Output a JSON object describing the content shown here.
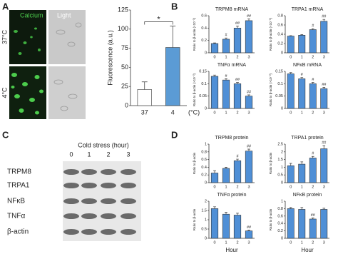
{
  "figure": {
    "panels": [
      "A",
      "B",
      "C",
      "D"
    ],
    "image_labels": {
      "calcium": "Calcium",
      "light": "Light",
      "row_37": "37°C",
      "row_4": "4°C"
    },
    "blot": {
      "title": "Cold stress (hour)",
      "lanes": [
        "0",
        "1",
        "2",
        "3"
      ],
      "rows": [
        "TRPM8",
        "TRPA1",
        "NFκB",
        "TNFα",
        "β-actin"
      ]
    }
  },
  "chart_data": [
    {
      "type": "bar",
      "ylabel": "Fluorescence (a.u.)",
      "xlabel": "(°C)",
      "categories": [
        "37",
        "4"
      ],
      "values": [
        21,
        76
      ],
      "errors": [
        10,
        28
      ],
      "colors": [
        "#ffffff",
        "#5b9bd5"
      ],
      "significance": "*",
      "ylim": [
        0,
        125
      ],
      "yticks": [
        0,
        25,
        50,
        75,
        100,
        125
      ]
    },
    {
      "type": "bar",
      "title": "TRPM8 mRNA",
      "ylabel": "Ratio to β-actin (×10⁻³)",
      "categories": [
        "0",
        "1",
        "2",
        "3"
      ],
      "values": [
        0.15,
        0.22,
        0.4,
        0.52
      ],
      "errors": [
        0.01,
        0.02,
        0.03,
        0.03
      ],
      "annotations": [
        null,
        "#",
        "##",
        "##"
      ],
      "color": "#4f8fd6",
      "ylim": [
        0,
        0.6
      ],
      "yticks": [
        0,
        0.2,
        0.4,
        0.6
      ]
    },
    {
      "type": "bar",
      "title": "TRPA1 mRNA",
      "ylabel": "Ratio to β-actin (×10⁻³)",
      "categories": [
        "0",
        "1",
        "2",
        "3"
      ],
      "values": [
        0.36,
        0.38,
        0.5,
        0.68
      ],
      "errors": [
        0.01,
        0.01,
        0.02,
        0.04
      ],
      "annotations": [
        null,
        null,
        "#",
        "##"
      ],
      "color": "#4f8fd6",
      "ylim": [
        0,
        0.8
      ],
      "yticks": [
        0,
        0.2,
        0.4,
        0.6,
        0.8
      ]
    },
    {
      "type": "bar",
      "title": "TNFα mRNA",
      "ylabel": "Ratio to β-actin (×10⁻³)",
      "categories": [
        "0",
        "1",
        "2",
        "3"
      ],
      "values": [
        0.13,
        0.115,
        0.1,
        0.05
      ],
      "errors": [
        0.005,
        0.005,
        0.005,
        0.005
      ],
      "annotations": [
        null,
        "#",
        "##",
        "##"
      ],
      "color": "#4f8fd6",
      "ylim": [
        0,
        0.15
      ],
      "yticks": [
        0,
        0.05,
        0.1,
        0.15
      ]
    },
    {
      "type": "bar",
      "title": "NFκB mRNA",
      "ylabel": "Ratio to β-actin (×10⁻³)",
      "categories": [
        "0",
        "1",
        "2",
        "3"
      ],
      "values": [
        0.14,
        0.12,
        0.1,
        0.08
      ],
      "errors": [
        0.005,
        0.005,
        0.005,
        0.005
      ],
      "annotations": [
        null,
        "#",
        "#",
        "##"
      ],
      "color": "#4f8fd6",
      "ylim": [
        0,
        0.15
      ],
      "yticks": [
        0,
        0.05,
        0.1,
        0.15
      ]
    },
    {
      "type": "bar",
      "title": "TRPM8 protein",
      "ylabel": "Ratio to β-actin",
      "categories": [
        "0",
        "1",
        "2",
        "3"
      ],
      "values": [
        0.25,
        0.37,
        0.57,
        0.82
      ],
      "errors": [
        0.06,
        0.03,
        0.04,
        0.05
      ],
      "annotations": [
        null,
        null,
        "#",
        "##"
      ],
      "color": "#4f8fd6",
      "ylim": [
        0,
        1
      ],
      "yticks": [
        0,
        0.2,
        0.4,
        0.6,
        0.8,
        1
      ]
    },
    {
      "type": "bar",
      "title": "TRPA1 protein",
      "ylabel": "Ratio to β-actin",
      "categories": [
        "0",
        "1",
        "2",
        "3"
      ],
      "values": [
        1.1,
        1.2,
        1.6,
        2.2
      ],
      "errors": [
        0.15,
        0.15,
        0.1,
        0.2
      ],
      "annotations": [
        null,
        null,
        "#",
        "##"
      ],
      "color": "#4f8fd6",
      "ylim": [
        0,
        2.5
      ],
      "yticks": [
        0,
        0.5,
        1,
        1.5,
        2,
        2.5
      ]
    },
    {
      "type": "bar",
      "title": "TNFα protein",
      "ylabel": "Ratio to β-actin",
      "xlabel": "Hour",
      "categories": [
        "0",
        "1",
        "2",
        "3"
      ],
      "values": [
        1.6,
        1.3,
        1.25,
        0.4
      ],
      "errors": [
        0.1,
        0.1,
        0.1,
        0.05
      ],
      "annotations": [
        null,
        null,
        null,
        "##"
      ],
      "color": "#4f8fd6",
      "ylim": [
        0,
        2
      ],
      "yticks": [
        0,
        0.5,
        1,
        1.5,
        2
      ]
    },
    {
      "type": "bar",
      "title": "NFκB protein",
      "ylabel": "Ratio to β-actin",
      "xlabel": "Hour",
      "categories": [
        "0",
        "1",
        "2",
        "3"
      ],
      "values": [
        0.8,
        0.78,
        0.52,
        0.78
      ],
      "errors": [
        0.03,
        0.05,
        0.03,
        0.03
      ],
      "annotations": [
        null,
        null,
        "##",
        null
      ],
      "color": "#4f8fd6",
      "ylim": [
        0,
        1
      ],
      "yticks": [
        0,
        0.2,
        0.4,
        0.6,
        0.8,
        1
      ]
    }
  ]
}
